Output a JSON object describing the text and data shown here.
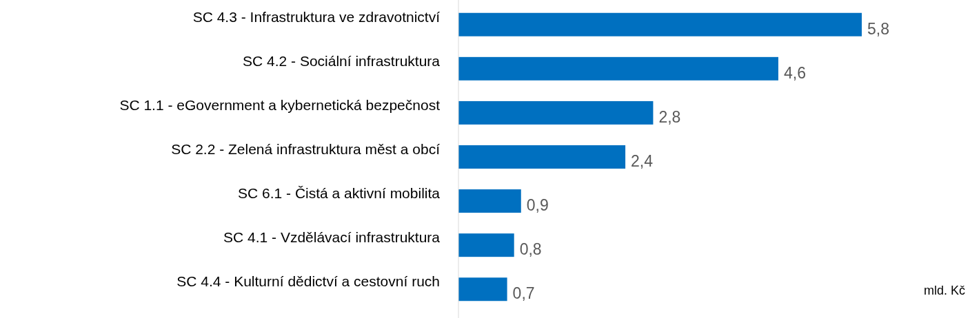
{
  "chart_data": {
    "type": "bar",
    "orientation": "horizontal",
    "categories": [
      "SC 4.3 - Infrastruktura ve zdravotnictví",
      "SC 4.2 - Sociální infrastruktura",
      "SC 1.1 - eGovernment a kybernetická bezpečnost",
      "SC 2.2 - Zelená infrastruktura měst a obcí",
      "SC 6.1 - Čistá a aktivní mobilita",
      "SC 4.1 - Vzdělávací infrastruktura",
      "SC 4.4 - Kulturní dědictví a cestovní ruch"
    ],
    "values": [
      5.8,
      4.6,
      2.8,
      2.4,
      0.9,
      0.8,
      0.7
    ],
    "value_labels": [
      "5,8",
      "4,6",
      "2,8",
      "2,4",
      "0,9",
      "0,8",
      "0,7"
    ],
    "color": "#0070c0",
    "xlabel": "mld. Kč"
  }
}
